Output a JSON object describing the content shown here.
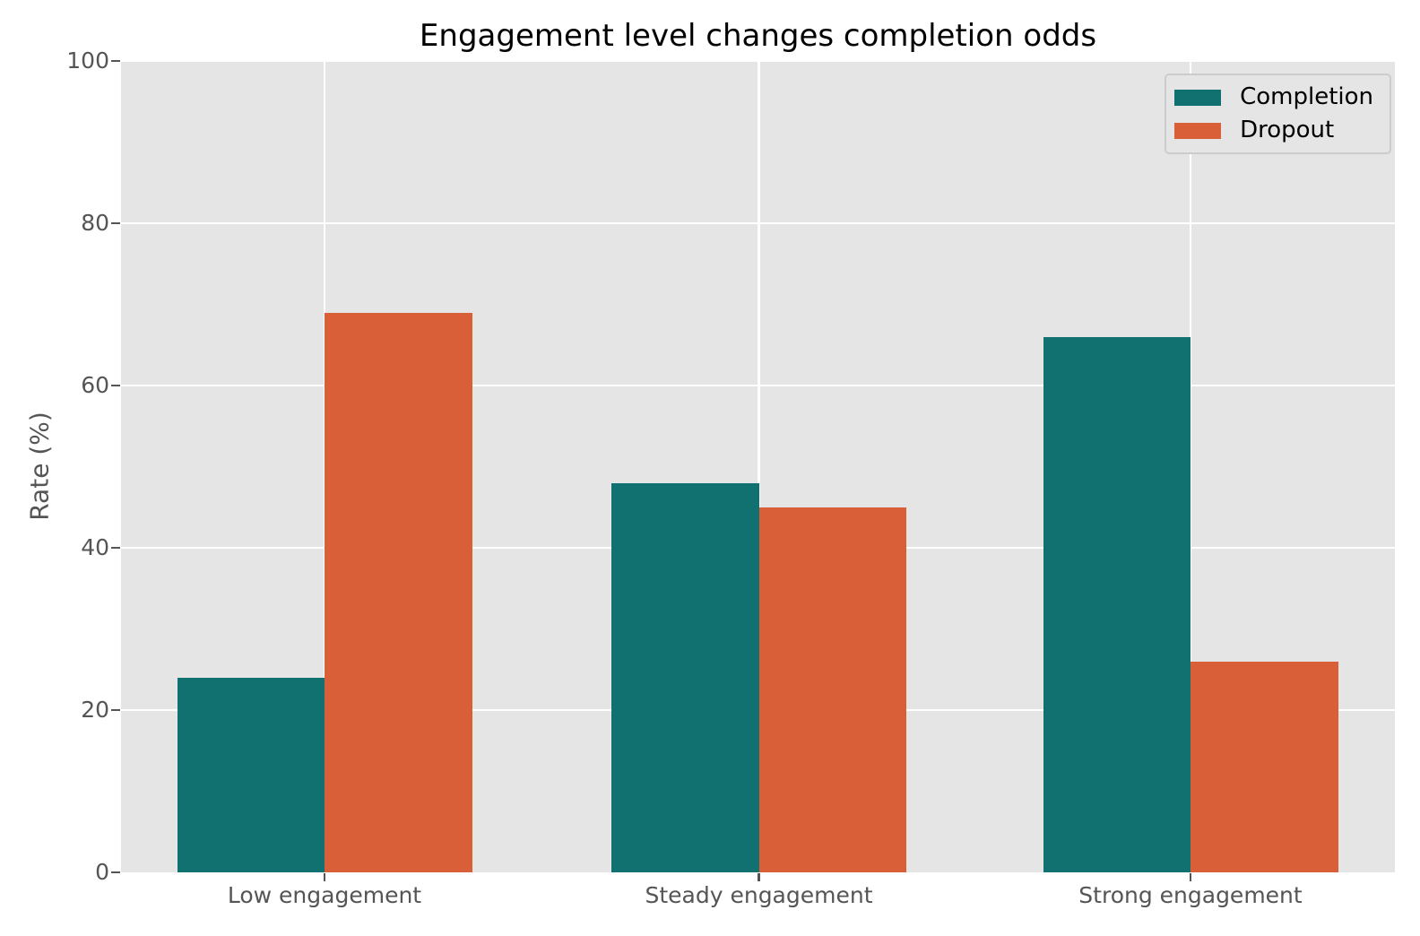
{
  "chart_data": {
    "type": "bar",
    "title": "Engagement level changes completion odds",
    "xlabel": "",
    "ylabel": "Rate (%)",
    "categories": [
      "Low engagement",
      "Steady engagement",
      "Strong engagement"
    ],
    "series": [
      {
        "name": "Completion",
        "color": "#107170",
        "values": [
          24,
          48,
          66
        ]
      },
      {
        "name": "Dropout",
        "color": "#d85f38",
        "values": [
          69,
          45,
          26
        ]
      }
    ],
    "ylim": [
      0,
      100
    ],
    "yticks": [
      0,
      20,
      40,
      60,
      80,
      100
    ],
    "grid": true,
    "legend_position": "upper right",
    "colors": {
      "plot_background": "#e5e5e5",
      "figure_background": "#ffffff",
      "gridline": "#ffffff",
      "tick_text": "#555555",
      "title_text": "#000000",
      "legend_border": "#cccccc"
    }
  }
}
